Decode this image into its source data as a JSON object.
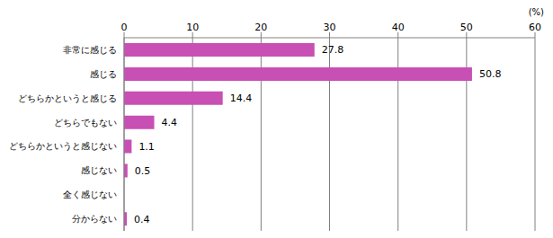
{
  "chart_data": {
    "type": "bar",
    "orientation": "horizontal",
    "x_label": "(%)",
    "categories": [
      "非常に感じる",
      "感じる",
      "どちらかというと感じる",
      "どちらでもない",
      "どちらかというと感じない",
      "感じない",
      "全く感じない",
      "分からない"
    ],
    "values": [
      27.8,
      50.8,
      14.4,
      4.4,
      1.1,
      0.5,
      0,
      0.4
    ],
    "color": "#c84fb4",
    "xlim": [
      0,
      60
    ],
    "xticks": [
      0,
      10,
      20,
      30,
      40,
      50,
      60
    ],
    "grid": true,
    "data_labels": true
  }
}
